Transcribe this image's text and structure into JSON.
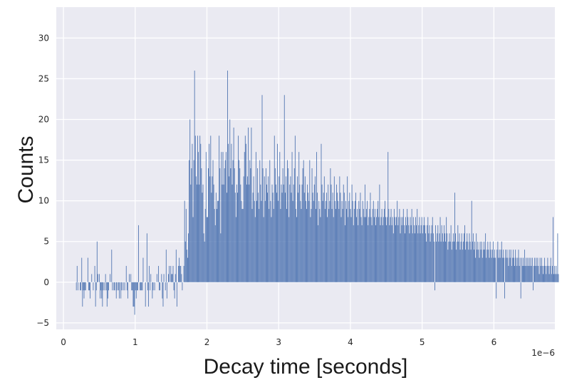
{
  "chart_data": {
    "type": "bar",
    "title": "",
    "xlabel": "Decay time [seconds]",
    "ylabel": "Counts",
    "x_offset_label": "1e−6",
    "xlim": [
      -0.1,
      6.85
    ],
    "ylim": [
      -5.8,
      33.8
    ],
    "x_ticks": [
      0,
      1,
      2,
      3,
      4,
      5,
      6
    ],
    "x_tick_labels": [
      "0",
      "1",
      "2",
      "3",
      "4",
      "5",
      "6"
    ],
    "y_ticks": [
      -5,
      0,
      5,
      10,
      15,
      20,
      25,
      30
    ],
    "y_tick_labels": [
      "−5",
      "0",
      "5",
      "10",
      "15",
      "20",
      "25",
      "30"
    ],
    "grid": true,
    "bar_color": "#4c72b0",
    "background_color": "#eaeaf2",
    "x_start": 0.18,
    "x_step": 0.0107,
    "values": [
      -1,
      2,
      -1,
      0,
      0,
      -1,
      -1,
      3,
      -3,
      -1,
      -2,
      -1,
      -1,
      0,
      0,
      3,
      -1,
      -1,
      -2,
      0,
      1,
      0,
      -1,
      0,
      2,
      -3,
      -1,
      5,
      1,
      0,
      1,
      -2,
      -1,
      -2,
      -3,
      -1,
      0,
      -1,
      1,
      -1,
      -3,
      -2,
      -1,
      0,
      1,
      0,
      4,
      -1,
      0,
      -1,
      -1,
      0,
      -2,
      -1,
      0,
      -1,
      -2,
      0,
      -2,
      -1,
      0,
      -1,
      0,
      -1,
      0,
      2,
      -1,
      -2,
      0,
      1,
      0,
      1,
      -1,
      -1,
      -3,
      -3,
      -4,
      -1,
      -2,
      -1,
      -1,
      7,
      0,
      -1,
      -1,
      -1,
      -1,
      3,
      0,
      0,
      -3,
      0,
      6,
      -1,
      -3,
      2,
      -1,
      1,
      0,
      -2,
      -1,
      0,
      -1,
      0,
      0,
      1,
      0,
      2,
      -1,
      -1,
      0,
      1,
      -2,
      -3,
      1,
      0,
      -1,
      4,
      -2,
      0,
      1,
      2,
      0,
      2,
      1,
      1,
      2,
      -1,
      -2,
      1,
      4,
      -3,
      0,
      2,
      3,
      2,
      2,
      1,
      -1,
      0,
      2,
      10,
      5,
      9,
      4,
      3,
      6,
      15,
      20,
      12,
      14,
      17,
      8,
      15,
      26,
      18,
      13,
      12,
      18,
      16,
      12,
      18,
      17,
      14,
      11,
      12,
      6,
      5,
      9,
      16,
      8,
      8,
      14,
      17,
      13,
      18,
      11,
      13,
      15,
      12,
      9,
      7,
      11,
      9,
      10,
      10,
      18,
      14,
      6,
      16,
      12,
      16,
      12,
      14,
      15,
      16,
      11,
      26,
      17,
      13,
      20,
      14,
      17,
      12,
      15,
      19,
      14,
      11,
      8,
      12,
      11,
      18,
      15,
      14,
      12,
      10,
      9,
      9,
      13,
      16,
      18,
      17,
      12,
      13,
      19,
      12,
      15,
      14,
      19,
      9,
      11,
      13,
      10,
      8,
      16,
      10,
      14,
      11,
      9,
      15,
      12,
      10,
      23,
      14,
      8,
      13,
      10,
      14,
      12,
      11,
      13,
      9,
      15,
      10,
      8,
      12,
      11,
      9,
      18,
      14,
      12,
      11,
      17,
      10,
      13,
      16,
      9,
      12,
      11,
      14,
      12,
      23,
      11,
      13,
      9,
      15,
      14,
      8,
      12,
      13,
      11,
      16,
      10,
      12,
      14,
      18,
      9,
      8,
      13,
      11,
      16,
      12,
      10,
      9,
      12,
      14,
      15,
      11,
      13,
      10,
      9,
      12,
      11,
      10,
      15,
      8,
      9,
      14,
      11,
      10,
      12,
      13,
      9,
      16,
      11,
      7,
      10,
      9,
      8,
      17,
      12,
      10,
      11,
      13,
      9,
      10,
      11,
      8,
      12,
      9,
      10,
      14,
      12,
      9,
      11,
      8,
      13,
      10,
      9,
      12,
      11,
      10,
      9,
      13,
      11,
      8,
      10,
      9,
      12,
      11,
      7,
      10,
      9,
      13,
      8,
      10,
      11,
      9,
      8,
      12,
      10,
      7,
      9,
      10,
      11,
      8,
      9,
      7,
      10,
      9,
      11,
      8,
      7,
      10,
      9,
      8,
      12,
      8,
      9,
      10,
      7,
      8,
      9,
      11,
      8,
      7,
      9,
      10,
      8,
      9,
      7,
      8,
      9,
      10,
      8,
      12,
      7,
      8,
      9,
      7,
      8,
      9,
      10,
      8,
      7,
      8,
      16,
      9,
      7,
      8,
      9,
      7,
      8,
      6,
      9,
      8,
      7,
      8,
      10,
      7,
      8,
      9,
      6,
      8,
      7,
      8,
      9,
      7,
      6,
      8,
      7,
      9,
      8,
      7,
      6,
      8,
      7,
      9,
      6,
      8,
      7,
      6,
      8,
      7,
      9,
      6,
      7,
      8,
      6,
      7,
      8,
      6,
      7,
      8,
      7,
      6,
      5,
      7,
      8,
      6,
      7,
      5,
      6,
      7,
      8,
      6,
      5,
      -1,
      7,
      5,
      6,
      7,
      5,
      6,
      8,
      5,
      7,
      6,
      5,
      7,
      6,
      5,
      8,
      6,
      4,
      5,
      6,
      5,
      7,
      4,
      5,
      6,
      5,
      11,
      6,
      4,
      5,
      7,
      5,
      6,
      4,
      5,
      6,
      4,
      5,
      6,
      7,
      4,
      5,
      6,
      5,
      4,
      6,
      5,
      4,
      10,
      5,
      6,
      4,
      5,
      3,
      6,
      4,
      5,
      4,
      3,
      5,
      4,
      5,
      3,
      4,
      5,
      4,
      6,
      3,
      4,
      5,
      4,
      3,
      5,
      4,
      3,
      4,
      5,
      3,
      4,
      3,
      -2,
      4,
      5,
      3,
      4,
      3,
      4,
      5,
      3,
      4,
      3,
      -2,
      4,
      3,
      4,
      3,
      2,
      4,
      3,
      4,
      2,
      3,
      4,
      3,
      2,
      4,
      3,
      2,
      3,
      4,
      2,
      3,
      -2,
      3,
      2,
      3,
      2,
      4,
      2,
      3,
      2,
      3,
      2,
      3,
      2,
      3,
      2,
      3,
      -1,
      2,
      3,
      2,
      3,
      2,
      3,
      2,
      1,
      3,
      2,
      3,
      2,
      1,
      2,
      3,
      2,
      1,
      2,
      3,
      2,
      1,
      2,
      3,
      1,
      2,
      8,
      1,
      2,
      1,
      2,
      1,
      6,
      1
    ]
  }
}
